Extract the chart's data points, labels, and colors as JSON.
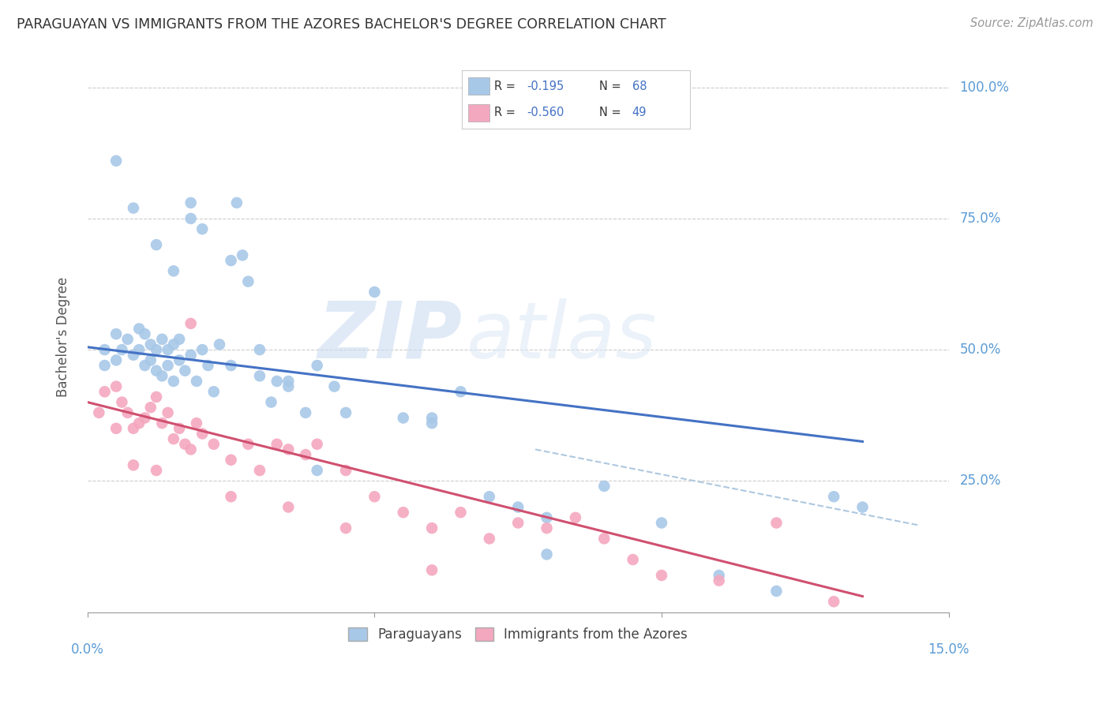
{
  "title": "PARAGUAYAN VS IMMIGRANTS FROM THE AZORES BACHELOR'S DEGREE CORRELATION CHART",
  "source": "Source: ZipAtlas.com",
  "ylabel_label": "Bachelor's Degree",
  "legend_blue_rval": "-0.195",
  "legend_blue_nval": "68",
  "legend_pink_rval": "-0.560",
  "legend_pink_nval": "49",
  "blue_color": "#a8c8e8",
  "pink_color": "#f4a8c0",
  "blue_line_color": "#4472c4",
  "pink_line_color": "#d05070",
  "dashed_line_color": "#aec8e0",
  "watermark_zip": "ZIP",
  "watermark_atlas": "atlas",
  "blue_scatter_x": [
    0.003,
    0.003,
    0.005,
    0.005,
    0.006,
    0.007,
    0.008,
    0.009,
    0.009,
    0.01,
    0.01,
    0.011,
    0.011,
    0.012,
    0.012,
    0.013,
    0.013,
    0.014,
    0.014,
    0.015,
    0.015,
    0.016,
    0.016,
    0.017,
    0.018,
    0.018,
    0.019,
    0.02,
    0.021,
    0.022,
    0.023,
    0.025,
    0.026,
    0.027,
    0.028,
    0.03,
    0.032,
    0.033,
    0.035,
    0.038,
    0.04,
    0.043,
    0.045,
    0.05,
    0.055,
    0.06,
    0.065,
    0.07,
    0.075,
    0.08,
    0.09,
    0.1,
    0.11,
    0.12,
    0.13,
    0.135,
    0.005,
    0.008,
    0.012,
    0.015,
    0.018,
    0.02,
    0.025,
    0.03,
    0.035,
    0.04,
    0.06,
    0.08
  ],
  "blue_scatter_y": [
    0.5,
    0.47,
    0.48,
    0.53,
    0.5,
    0.52,
    0.49,
    0.5,
    0.54,
    0.47,
    0.53,
    0.48,
    0.51,
    0.46,
    0.5,
    0.45,
    0.52,
    0.47,
    0.5,
    0.44,
    0.51,
    0.48,
    0.52,
    0.46,
    0.75,
    0.49,
    0.44,
    0.5,
    0.47,
    0.42,
    0.51,
    0.47,
    0.78,
    0.68,
    0.63,
    0.45,
    0.4,
    0.44,
    0.43,
    0.38,
    0.47,
    0.43,
    0.38,
    0.61,
    0.37,
    0.36,
    0.42,
    0.22,
    0.2,
    0.18,
    0.24,
    0.17,
    0.07,
    0.04,
    0.22,
    0.2,
    0.86,
    0.77,
    0.7,
    0.65,
    0.78,
    0.73,
    0.67,
    0.5,
    0.44,
    0.27,
    0.37,
    0.11
  ],
  "pink_scatter_x": [
    0.002,
    0.003,
    0.005,
    0.006,
    0.007,
    0.008,
    0.009,
    0.01,
    0.011,
    0.012,
    0.013,
    0.014,
    0.015,
    0.016,
    0.017,
    0.018,
    0.019,
    0.02,
    0.022,
    0.025,
    0.028,
    0.03,
    0.033,
    0.035,
    0.038,
    0.04,
    0.045,
    0.05,
    0.055,
    0.06,
    0.065,
    0.07,
    0.075,
    0.08,
    0.085,
    0.09,
    0.095,
    0.1,
    0.11,
    0.12,
    0.13,
    0.005,
    0.008,
    0.012,
    0.018,
    0.025,
    0.035,
    0.045,
    0.06
  ],
  "pink_scatter_y": [
    0.38,
    0.42,
    0.43,
    0.4,
    0.38,
    0.35,
    0.36,
    0.37,
    0.39,
    0.41,
    0.36,
    0.38,
    0.33,
    0.35,
    0.32,
    0.55,
    0.36,
    0.34,
    0.32,
    0.29,
    0.32,
    0.27,
    0.32,
    0.31,
    0.3,
    0.32,
    0.27,
    0.22,
    0.19,
    0.16,
    0.19,
    0.14,
    0.17,
    0.16,
    0.18,
    0.14,
    0.1,
    0.07,
    0.06,
    0.17,
    0.02,
    0.35,
    0.28,
    0.27,
    0.31,
    0.22,
    0.2,
    0.16,
    0.08
  ],
  "blue_trendline_x": [
    0.0,
    0.135
  ],
  "blue_trendline_y": [
    0.505,
    0.325
  ],
  "pink_trendline_x": [
    0.0,
    0.135
  ],
  "pink_trendline_y": [
    0.4,
    0.03
  ],
  "dashed_line_x": [
    0.078,
    0.145
  ],
  "dashed_line_y": [
    0.31,
    0.165
  ],
  "xlim": [
    0.0,
    0.148
  ],
  "ylim": [
    0.0,
    1.05
  ],
  "yticks": [
    0.25,
    0.5,
    0.75,
    1.0
  ],
  "xticks_positions": [
    0.0,
    0.05,
    0.1,
    0.15
  ],
  "background_color": "#ffffff",
  "grid_color": "#cccccc",
  "title_color": "#333333",
  "axis_label_color": "#5b9bd5",
  "ylabel_color": "#555555"
}
